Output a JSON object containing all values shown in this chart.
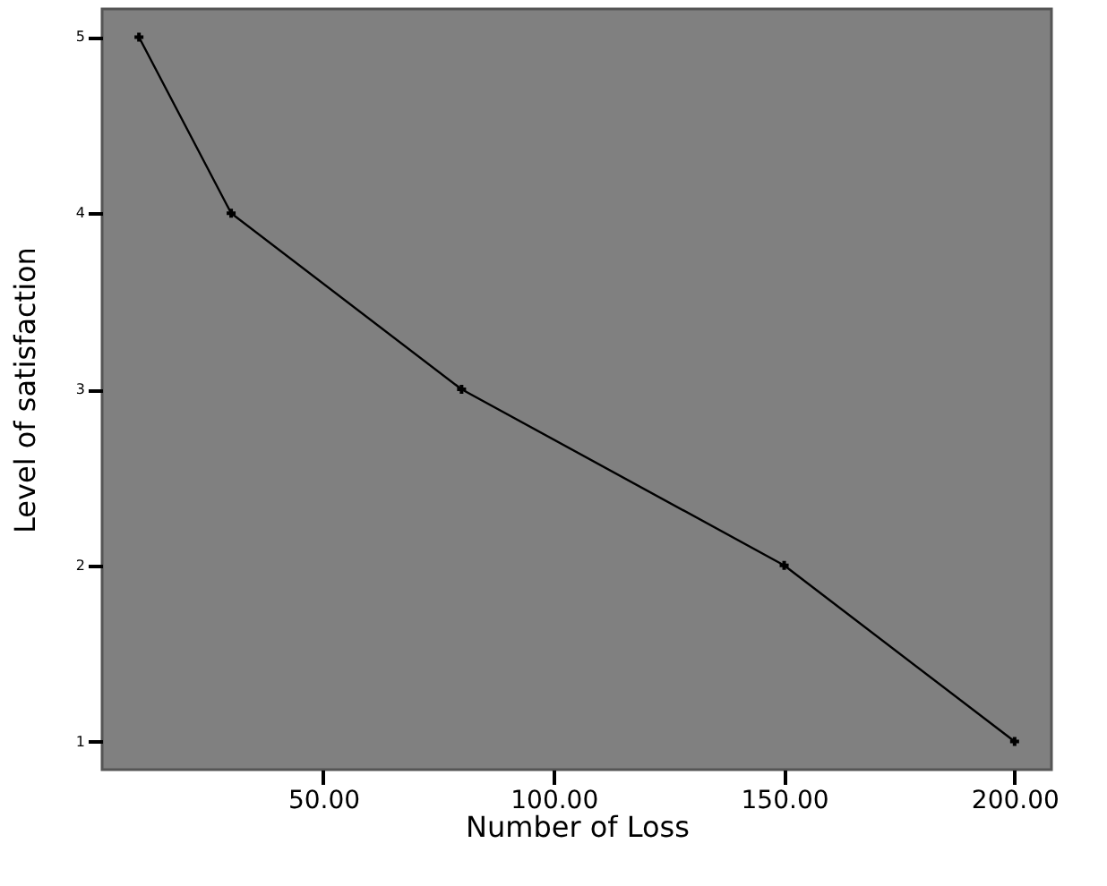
{
  "chart_data": {
    "type": "line",
    "xlabel": "Number of Loss",
    "ylabel": "Level of satisfaction",
    "x": [
      10,
      30,
      80,
      150,
      200
    ],
    "series": [
      {
        "color": "#000000",
        "values": [
          5,
          4,
          3,
          2,
          1
        ]
      }
    ],
    "xlim": [
      2,
      208
    ],
    "ylim": [
      0.84,
      5.16
    ],
    "xticks": [
      {
        "value": 50,
        "label": "50.00"
      },
      {
        "value": 100,
        "label": "100.00"
      },
      {
        "value": 150,
        "label": "150.00"
      },
      {
        "value": 200,
        "label": "200.00"
      }
    ],
    "yticks": [
      1,
      2,
      3,
      4,
      5
    ],
    "marker": "cross",
    "line_style": "solid",
    "grid": false
  }
}
